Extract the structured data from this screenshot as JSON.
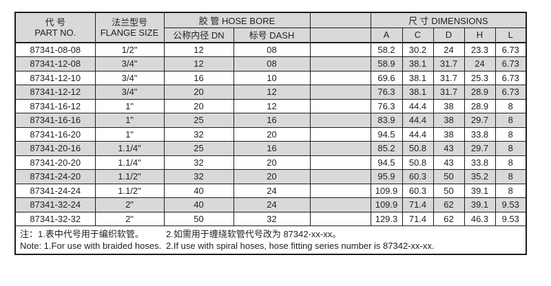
{
  "colors": {
    "border": "#1c1c1c",
    "row_stripe": "#d9d9d9",
    "header_bg": "#d9d9d9",
    "text": "#1f1f1f",
    "page_bg": "#ffffff"
  },
  "table": {
    "header": {
      "part_no_zh": "代 号",
      "part_no_en": "PART NO.",
      "flange_zh": "法兰型号",
      "flange_en": "FLANGE SIZE",
      "hose_bore": "胶 管 HOSE BORE",
      "dn": "公称内径 DN",
      "dash": "标号 DASH",
      "dimensions": "尺 寸 DIMENSIONS",
      "dim_cols": [
        "A",
        "C",
        "D",
        "H",
        "L"
      ]
    },
    "rows": [
      [
        "87341-08-08",
        "1/2\"",
        "12",
        "08",
        "",
        "58.2",
        "30.2",
        "24",
        "23.3",
        "6.73"
      ],
      [
        "87341-12-08",
        "3/4\"",
        "12",
        "08",
        "",
        "58.9",
        "38.1",
        "31.7",
        "24",
        "6.73"
      ],
      [
        "87341-12-10",
        "3/4\"",
        "16",
        "10",
        "",
        "69.6",
        "38.1",
        "31.7",
        "25.3",
        "6.73"
      ],
      [
        "87341-12-12",
        "3/4\"",
        "20",
        "12",
        "",
        "76.3",
        "38.1",
        "31.7",
        "28.9",
        "6.73"
      ],
      [
        "87341-16-12",
        "1\"",
        "20",
        "12",
        "",
        "76.3",
        "44.4",
        "38",
        "28.9",
        "8"
      ],
      [
        "87341-16-16",
        "1\"",
        "25",
        "16",
        "",
        "83.9",
        "44.4",
        "38",
        "29.7",
        "8"
      ],
      [
        "87341-16-20",
        "1\"",
        "32",
        "20",
        "",
        "94.5",
        "44.4",
        "38",
        "33.8",
        "8"
      ],
      [
        "87341-20-16",
        "1.1/4\"",
        "25",
        "16",
        "",
        "85.2",
        "50.8",
        "43",
        "29.7",
        "8"
      ],
      [
        "87341-20-20",
        "1.1/4\"",
        "32",
        "20",
        "",
        "94.5",
        "50.8",
        "43",
        "33.8",
        "8"
      ],
      [
        "87341-24-20",
        "1.1/2\"",
        "32",
        "20",
        "",
        "95.9",
        "60.3",
        "50",
        "35.2",
        "8"
      ],
      [
        "87341-24-24",
        "1.1/2\"",
        "40",
        "24",
        "",
        "109.9",
        "60.3",
        "50",
        "39.1",
        "8"
      ],
      [
        "87341-32-24",
        "2\"",
        "40",
        "24",
        "",
        "109.9",
        "71.4",
        "62",
        "39.1",
        "9.53"
      ],
      [
        "87341-32-32",
        "2\"",
        "50",
        "32",
        "",
        "129.3",
        "71.4",
        "62",
        "46.3",
        "9.53"
      ]
    ],
    "notes": {
      "zh_1": "注：1.表中代号用于编织软管。",
      "zh_2": "2.如需用于缠绕软管代号改为 87342-xx-xx。",
      "en_1": "Note: 1.For use with braided hoses.",
      "en_2": "2.If use with spiral hoses, hose fitting series number is 87342-xx-xx."
    }
  }
}
